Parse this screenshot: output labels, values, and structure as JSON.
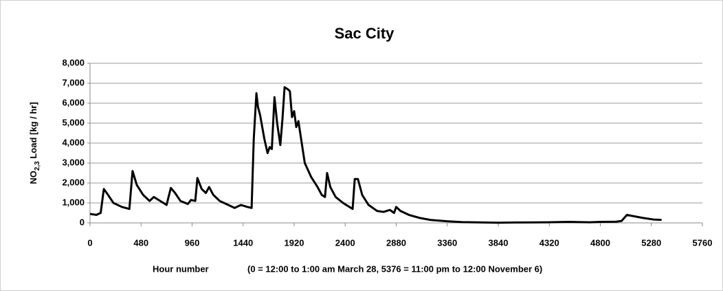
{
  "chart_data": {
    "type": "line",
    "title": "Sac City",
    "ylabel": [
      "NO",
      "2,3",
      " Load [kg / hr]"
    ],
    "xlabel": "Hour number",
    "xlabel_note": "(0 = 12:00 to 1:00 am March 28, 5376 = 11:00 pm to 12:00 November 6)",
    "xlim": [
      0,
      5760
    ],
    "xticks": [
      0,
      480,
      960,
      1440,
      1920,
      2400,
      2880,
      3360,
      3840,
      4320,
      4800,
      5280,
      5760
    ],
    "ylim": [
      0,
      8000
    ],
    "yticks": [
      0,
      {
        "value": 1000,
        "label": "1,000"
      },
      {
        "value": 2000,
        "label": "2,000"
      },
      {
        "value": 3000,
        "label": "3,000"
      },
      {
        "value": 4000,
        "label": "4,000"
      },
      {
        "value": 5000,
        "label": "5,000"
      },
      {
        "value": 6000,
        "label": "6,000"
      },
      {
        "value": 7000,
        "label": "7,000"
      },
      {
        "value": 8000,
        "label": "8,000"
      }
    ],
    "grid": true,
    "color": "#000000",
    "x": [
      0,
      60,
      100,
      130,
      170,
      220,
      300,
      370,
      400,
      440,
      500,
      560,
      600,
      660,
      720,
      760,
      800,
      850,
      920,
      950,
      990,
      1010,
      1050,
      1090,
      1120,
      1160,
      1220,
      1300,
      1360,
      1420,
      1480,
      1520,
      1540,
      1565,
      1580,
      1600,
      1640,
      1670,
      1690,
      1710,
      1735,
      1760,
      1790,
      1810,
      1830,
      1860,
      1880,
      1900,
      1920,
      1940,
      1960,
      1980,
      2020,
      2080,
      2140,
      2180,
      2210,
      2230,
      2260,
      2310,
      2380,
      2440,
      2470,
      2490,
      2520,
      2560,
      2620,
      2700,
      2760,
      2820,
      2860,
      2880,
      2920,
      3000,
      3100,
      3200,
      3360,
      3500,
      3700,
      3840,
      4000,
      4300,
      4500,
      4700,
      4800,
      4950,
      5000,
      5050,
      5100,
      5200,
      5300,
      5376
    ],
    "values": [
      450,
      400,
      500,
      1700,
      1400,
      1000,
      800,
      700,
      2600,
      1900,
      1400,
      1100,
      1300,
      1100,
      900,
      1750,
      1500,
      1100,
      950,
      1150,
      1100,
      2250,
      1700,
      1500,
      1800,
      1400,
      1100,
      900,
      750,
      900,
      800,
      750,
      4200,
      6500,
      5800,
      5400,
      4200,
      3500,
      3800,
      3700,
      6300,
      5000,
      3900,
      5200,
      6800,
      6700,
      6600,
      5300,
      5600,
      4800,
      5100,
      4400,
      3000,
      2300,
      1800,
      1400,
      1300,
      2500,
      1800,
      1300,
      1000,
      800,
      700,
      2200,
      2200,
      1400,
      900,
      600,
      550,
      650,
      500,
      800,
      600,
      400,
      250,
      150,
      80,
      40,
      20,
      10,
      20,
      30,
      50,
      30,
      50,
      60,
      100,
      400,
      350,
      250,
      170,
      150
    ]
  }
}
